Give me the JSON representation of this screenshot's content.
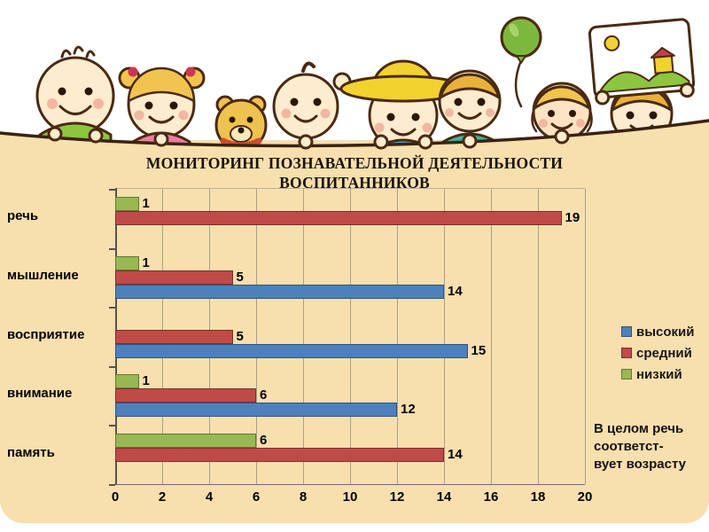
{
  "slide": {
    "title_line1": "МОНИТОРИНГ ПОЗНАВАТЕЛЬНОЙ ДЕЯТЕЛЬНОСТИ",
    "title_line2": "ВОСПИТАННИКОВ",
    "note_lines": [
      "В целом речь",
      "соответст-",
      "вует возрасту"
    ],
    "background_color": "#f8dfae"
  },
  "chart_data": {
    "type": "bar",
    "orientation": "horizontal",
    "title": "",
    "xlabel": "",
    "ylabel": "",
    "categories": [
      "речь",
      "мышление",
      "восприятие",
      "внимание",
      "память"
    ],
    "series": [
      {
        "name": "высокий",
        "color": "#4e80bc",
        "values": [
          0,
          14,
          15,
          12,
          0
        ]
      },
      {
        "name": "средний",
        "color": "#bf4b47",
        "values": [
          19,
          5,
          5,
          6,
          14
        ]
      },
      {
        "name": "низкий",
        "color": "#97b853",
        "values": [
          1,
          1,
          0,
          1,
          6
        ]
      }
    ],
    "xlim": [
      0,
      20
    ],
    "xticks": [
      0,
      2,
      4,
      6,
      8,
      10,
      12,
      14,
      16,
      18,
      20
    ],
    "grid": true,
    "legend_position": "right",
    "value_labels": true
  }
}
